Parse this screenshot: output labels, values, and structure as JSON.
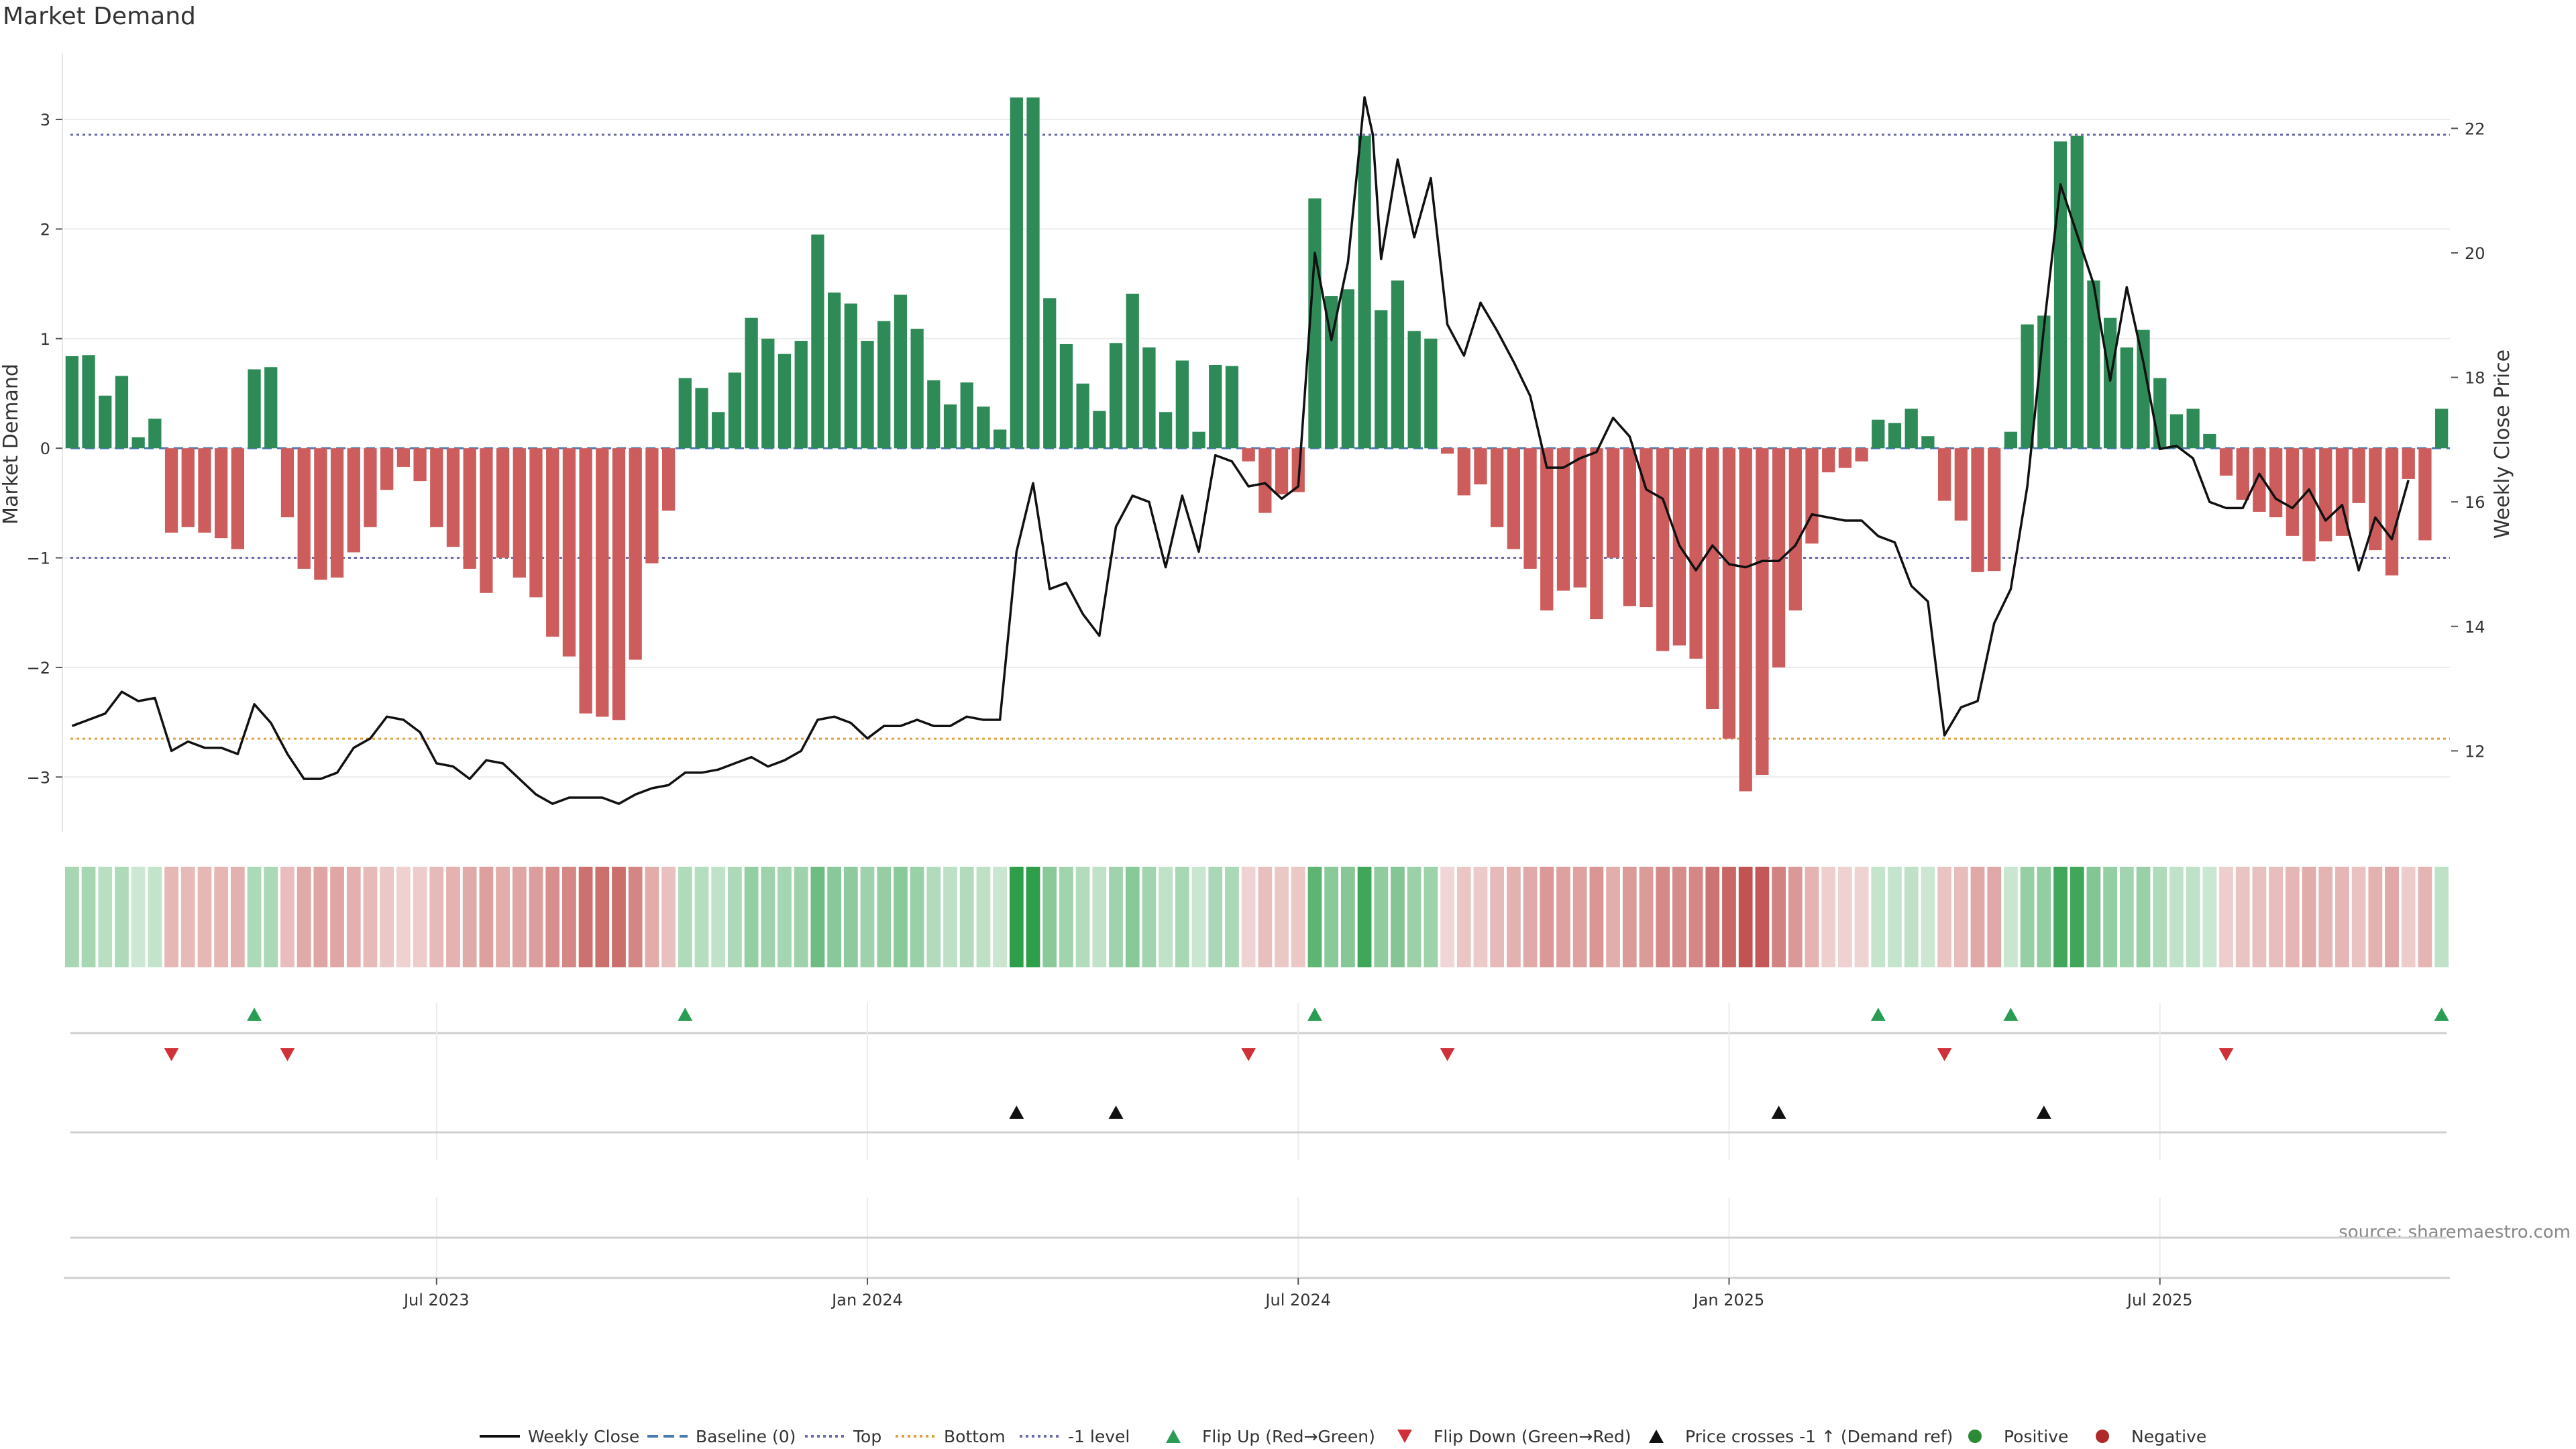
{
  "chart_data": {
    "type": "bar",
    "title": "Market Demand",
    "ylabel": "Market Demand",
    "y2label": "Weekly Close Price",
    "ylim": [
      -3.5,
      3.6
    ],
    "y2lim": [
      10.7,
      23.2
    ],
    "yticks": [
      -3,
      -2,
      -1,
      0,
      1,
      2,
      3
    ],
    "y2ticks": [
      12,
      14,
      16,
      18,
      20,
      22
    ],
    "xticks": [
      "Jul 2023",
      "Jan 2024",
      "Jul 2024",
      "Jan 2025",
      "Jul 2025"
    ],
    "reference_lines": {
      "top": 2.86,
      "bottom": -2.65,
      "minus_one": -1.0
    },
    "demand": [
      0.84,
      0.85,
      0.48,
      0.66,
      0.1,
      0.27,
      -0.77,
      -0.72,
      -0.77,
      -0.82,
      -0.92,
      0.72,
      0.74,
      -0.63,
      -1.1,
      -1.2,
      -1.18,
      -0.95,
      -0.72,
      -0.38,
      -0.17,
      -0.3,
      -0.72,
      -0.9,
      -1.1,
      -1.32,
      -1.0,
      -1.18,
      -1.36,
      -1.72,
      -1.9,
      -2.42,
      -2.45,
      -2.48,
      -1.93,
      -1.05,
      -0.57,
      0.64,
      0.55,
      0.33,
      0.69,
      1.19,
      1.0,
      0.86,
      0.98,
      1.95,
      1.42,
      1.32,
      0.98,
      1.16,
      1.4,
      1.09,
      0.62,
      0.4,
      0.6,
      0.38,
      0.17,
      3.2,
      3.2,
      1.37,
      0.95,
      0.59,
      0.34,
      0.96,
      1.41,
      0.92,
      0.33,
      0.8,
      0.15,
      0.76,
      0.75,
      -0.12,
      -0.59,
      -0.42,
      -0.4,
      2.28,
      1.39,
      1.45,
      2.85,
      1.26,
      1.53,
      1.07,
      1.0,
      -0.05,
      -0.43,
      -0.33,
      -0.72,
      -0.92,
      -1.1,
      -1.48,
      -1.3,
      -1.27,
      -1.56,
      -1.0,
      -1.44,
      -1.45,
      -1.85,
      -1.8,
      -1.92,
      -2.38,
      -2.65,
      -3.13,
      -2.98,
      -2.0,
      -1.48,
      -0.87,
      -0.22,
      -0.18,
      -0.12,
      0.26,
      0.23,
      0.36,
      0.11,
      -0.48,
      -0.66,
      -1.13,
      -1.12,
      0.15,
      1.13,
      1.21,
      2.8,
      2.85,
      1.53,
      1.19,
      0.92,
      1.08,
      0.64,
      0.31,
      0.36,
      0.13,
      -0.25,
      -0.47,
      -0.58,
      -0.63,
      -0.8,
      -1.03,
      -0.85,
      -0.8,
      -0.5,
      -0.93,
      -1.16,
      -0.28,
      -0.84,
      0.36
    ],
    "close_x": [
      0,
      2,
      3,
      4,
      5,
      6,
      7,
      8,
      9,
      10,
      11,
      12,
      13,
      14,
      15,
      16,
      17,
      18,
      19,
      20,
      21,
      22,
      23,
      24,
      25,
      26,
      27,
      28,
      29,
      30,
      31,
      32,
      33,
      34,
      35,
      36,
      37,
      38,
      39,
      40,
      41,
      42,
      43,
      44,
      45,
      46,
      47,
      48,
      49,
      50,
      51,
      52,
      53,
      54,
      55,
      56,
      57,
      58,
      59,
      60,
      61,
      62,
      63,
      64,
      65,
      66,
      67,
      68,
      69,
      70,
      71,
      72,
      73,
      74,
      75,
      76,
      77,
      78,
      78.5,
      79,
      80,
      81,
      82,
      83,
      84,
      85,
      86,
      87,
      88,
      89,
      90,
      91,
      92,
      93,
      94,
      95,
      96,
      97,
      98,
      99,
      100,
      101,
      102,
      103,
      104,
      105,
      106,
      107,
      108,
      109,
      110,
      111,
      112,
      113,
      114,
      115,
      116,
      117,
      118,
      119,
      120,
      121,
      122,
      123,
      124,
      125,
      126,
      127,
      128,
      129,
      130,
      131,
      132,
      133,
      134,
      135,
      136,
      137,
      138,
      139,
      140,
      141,
      142,
      143
    ],
    "close_y": [
      12.4,
      12.6,
      12.95,
      12.8,
      12.85,
      12.0,
      12.15,
      12.05,
      12.05,
      11.95,
      12.75,
      12.45,
      11.95,
      11.55,
      11.55,
      11.65,
      12.05,
      12.2,
      12.55,
      12.5,
      12.3,
      11.8,
      11.75,
      11.55,
      11.85,
      11.8,
      11.55,
      11.3,
      11.15,
      11.25,
      11.25,
      11.25,
      11.15,
      11.3,
      11.4,
      11.45,
      11.65,
      11.65,
      11.7,
      11.8,
      11.9,
      11.75,
      11.85,
      12.0,
      12.5,
      12.55,
      12.45,
      12.2,
      12.4,
      12.4,
      12.5,
      12.4,
      12.4,
      12.55,
      12.5,
      12.5,
      15.2,
      16.3,
      14.6,
      14.7,
      14.2,
      13.85,
      15.6,
      16.1,
      16.0,
      14.95,
      16.1,
      15.2,
      16.75,
      16.65,
      16.25,
      16.3,
      16.05,
      16.25,
      20.0,
      18.6,
      19.85,
      22.5,
      21.9,
      19.9,
      21.5,
      20.25,
      21.2,
      18.85,
      18.35,
      19.2,
      18.75,
      18.25,
      17.7,
      16.55,
      16.55,
      16.7,
      16.8,
      17.35,
      17.05,
      16.2,
      16.05,
      15.3,
      14.9,
      15.3,
      15.0,
      14.95,
      15.05,
      15.05,
      15.3,
      15.8,
      15.75,
      15.7,
      15.7,
      15.45,
      15.35,
      14.65,
      14.4,
      12.25,
      12.7,
      12.8,
      14.05,
      14.6,
      16.25,
      18.8,
      21.1,
      20.3,
      19.5,
      17.95,
      19.45,
      18.25,
      16.85,
      16.9,
      16.7,
      16.0,
      15.9,
      15.9,
      16.45,
      16.05,
      15.9,
      16.2,
      15.7,
      15.95,
      14.9,
      15.75,
      15.4,
      16.35
    ],
    "flip_up_x": [
      11,
      37,
      75,
      109,
      117,
      143
    ],
    "flip_down_x": [
      6,
      13,
      71,
      83,
      113,
      130
    ],
    "cross_x": [
      57,
      63,
      103,
      119
    ],
    "strip_max": 3.2,
    "legend": [
      {
        "label": "Weekly Close",
        "kind": "line",
        "color": "#111111"
      },
      {
        "label": "Baseline (0)",
        "kind": "dash",
        "color": "#4a78b0"
      },
      {
        "label": "Top",
        "kind": "dot",
        "color": "#6a6aa8"
      },
      {
        "label": "Bottom",
        "kind": "dot",
        "color": "#e0a040"
      },
      {
        "label": "-1 level",
        "kind": "dot",
        "color": "#6a6aa8"
      },
      {
        "label": "Flip Up (Red→Green)",
        "kind": "tri-up",
        "color": "#2a9d55"
      },
      {
        "label": "Flip Down (Green→Red)",
        "kind": "tri-down",
        "color": "#d03038"
      },
      {
        "label": "Price crosses -1 ↑ (Demand ref)",
        "kind": "tri-up",
        "color": "#111111"
      },
      {
        "label": "Positive",
        "kind": "circle",
        "color": "#2a8a35"
      },
      {
        "label": "Negative",
        "kind": "circle",
        "color": "#b02828"
      }
    ],
    "colors": {
      "positive": "#2e8b57",
      "negative": "#cd5c5c",
      "strip_pos": "#2e9e4a",
      "strip_neg": "#c0504d"
    }
  },
  "source": "source: sharemaestro.com"
}
